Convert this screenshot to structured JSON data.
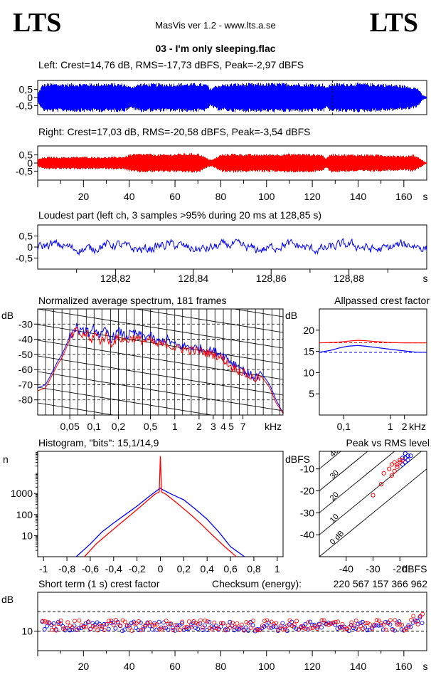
{
  "header": {
    "logo_left": "LTS",
    "logo_right": "LTS",
    "app_title": "MasVis ver 1.2 - www.lts.a.se",
    "file_title": "03 - I'm only sleeping.flac"
  },
  "colors": {
    "left": "#0000ff",
    "right": "#ff0000",
    "grid": "#000000"
  },
  "chart_data": [
    {
      "type": "line",
      "id": "waveform-left",
      "title": "Left: Crest=14,76 dB, RMS=-17,73 dBFS, Peak=-2,97 dBFS",
      "ylim": [
        -1,
        1
      ],
      "yticks": [
        "0,5",
        "0",
        "-0,5"
      ],
      "ytick_values": [
        0.5,
        0,
        -0.5
      ],
      "xlim": [
        0,
        170
      ],
      "marker_time": 128.85,
      "envelope": {
        "t": [
          0,
          2,
          5,
          10,
          20,
          30,
          38,
          40,
          45,
          55,
          62,
          70,
          74,
          75,
          78,
          85,
          95,
          105,
          115,
          125,
          126,
          127,
          130,
          140,
          150,
          158,
          162,
          166,
          168,
          170
        ],
        "amplitude": [
          0.3,
          0.85,
          0.9,
          0.88,
          0.9,
          0.9,
          0.88,
          0.7,
          0.9,
          0.88,
          0.9,
          0.9,
          0.85,
          0.55,
          0.8,
          0.9,
          0.9,
          0.92,
          0.9,
          0.88,
          0.6,
          0.85,
          0.9,
          0.92,
          0.88,
          0.8,
          0.75,
          0.6,
          0.15,
          0.05
        ]
      }
    },
    {
      "type": "line",
      "id": "waveform-right",
      "title": "Right: Crest=17,03 dB, RMS=-20,58 dBFS, Peak=-3,54 dBFS",
      "ylim": [
        -1,
        1
      ],
      "yticks": [
        "0,5",
        "0",
        "-0,5"
      ],
      "ytick_values": [
        0.5,
        0,
        -0.5
      ],
      "xlim": [
        0,
        170
      ],
      "xticks": [
        "20",
        "40",
        "60",
        "80",
        "100",
        "120",
        "140",
        "160"
      ],
      "xtick_values": [
        20,
        40,
        60,
        80,
        100,
        120,
        140,
        160
      ],
      "xunit": "s",
      "envelope": {
        "t": [
          0,
          2,
          5,
          10,
          20,
          30,
          38,
          40,
          45,
          55,
          62,
          70,
          74,
          76,
          80,
          85,
          95,
          105,
          115,
          124,
          126,
          128,
          135,
          145,
          155,
          160,
          164,
          167,
          169,
          170
        ],
        "amplitude": [
          0.25,
          0.35,
          0.4,
          0.38,
          0.4,
          0.38,
          0.42,
          0.55,
          0.6,
          0.55,
          0.6,
          0.62,
          0.3,
          0.2,
          0.55,
          0.6,
          0.55,
          0.58,
          0.6,
          0.55,
          0.3,
          0.6,
          0.55,
          0.55,
          0.5,
          0.45,
          0.55,
          0.3,
          0.08,
          0.03
        ]
      }
    },
    {
      "type": "line",
      "id": "loudest-part",
      "title": "Loudest part (left  ch, 3 samples >95% during 20 ms at 128,85 s)",
      "ylim": [
        -1,
        1
      ],
      "yticks": [
        "0,5",
        "0",
        "-0,5"
      ],
      "ytick_values": [
        0.5,
        0,
        -0.5
      ],
      "xlim": [
        128.8,
        128.9
      ],
      "xticks": [
        "128,82",
        "128,84",
        "128,86",
        "128,88"
      ],
      "xtick_values": [
        128.82,
        128.84,
        128.86,
        128.88
      ],
      "xunit": "s",
      "amplitude_range": [
        -0.35,
        0.45
      ]
    },
    {
      "type": "line",
      "id": "average-spectrum",
      "title": "Normalized average spectrum, 181 frames",
      "ylabel": "dB",
      "ylim": [
        -90,
        -20
      ],
      "yticks": [
        "-30",
        "-40",
        "-50",
        "-60",
        "-70",
        "-80"
      ],
      "ytick_values": [
        -30,
        -40,
        -50,
        -60,
        -70,
        -80
      ],
      "xscale": "log",
      "xlim": [
        0.02,
        22
      ],
      "xticks": [
        "0,05",
        "0,1",
        "0,2",
        "0,5",
        "1",
        "2",
        "3",
        "4",
        "5",
        "7"
      ],
      "xtick_values": [
        0.05,
        0.1,
        0.2,
        0.5,
        1,
        2,
        3,
        4,
        5,
        7
      ],
      "xunit": "kHz",
      "series": [
        {
          "color": "#0000ff",
          "x": [
            0.02,
            0.025,
            0.03,
            0.035,
            0.04,
            0.05,
            0.06,
            0.07,
            0.08,
            0.09,
            0.1,
            0.12,
            0.14,
            0.16,
            0.2,
            0.25,
            0.3,
            0.4,
            0.5,
            0.6,
            0.8,
            1,
            1.5,
            2,
            3,
            4,
            5,
            6,
            7,
            8,
            10,
            12,
            15,
            18,
            22
          ],
          "y": [
            -72,
            -70,
            -62,
            -55,
            -50,
            -38,
            -32,
            -36,
            -33,
            -38,
            -32,
            -38,
            -34,
            -40,
            -35,
            -38,
            -36,
            -38,
            -38,
            -42,
            -40,
            -44,
            -45,
            -46,
            -48,
            -50,
            -55,
            -57,
            -60,
            -63,
            -65,
            -63,
            -70,
            -80,
            -89
          ]
        },
        {
          "color": "#ff0000",
          "x": [
            0.02,
            0.025,
            0.03,
            0.035,
            0.04,
            0.05,
            0.06,
            0.07,
            0.08,
            0.09,
            0.1,
            0.12,
            0.14,
            0.16,
            0.2,
            0.25,
            0.3,
            0.4,
            0.5,
            0.6,
            0.8,
            1,
            1.5,
            2,
            3,
            4,
            5,
            6,
            7,
            8,
            10,
            12,
            15,
            18,
            22
          ],
          "y": [
            -74,
            -72,
            -64,
            -57,
            -52,
            -40,
            -34,
            -38,
            -36,
            -42,
            -36,
            -41,
            -38,
            -43,
            -39,
            -41,
            -39,
            -41,
            -41,
            -44,
            -43,
            -46,
            -47,
            -48,
            -50,
            -53,
            -58,
            -60,
            -62,
            -64,
            -66,
            -65,
            -72,
            -82,
            -89
          ]
        }
      ]
    },
    {
      "type": "line",
      "id": "allpassed-crest",
      "title": "Allpassed crest factor",
      "ylabel": "dB",
      "ylim": [
        0,
        25
      ],
      "yticks": [
        "20",
        "15",
        "10",
        "5"
      ],
      "ytick_values": [
        20,
        15,
        10,
        5
      ],
      "xscale": "log",
      "xlim": [
        0.03,
        6
      ],
      "xticks": [
        "0,1",
        "1",
        "2"
      ],
      "xtick_values": [
        0.1,
        1,
        2
      ],
      "xunit": "kHz",
      "reference_lines": [
        {
          "color": "#ff0000",
          "y": 17.03
        },
        {
          "color": "#0000ff",
          "y": 14.76
        }
      ],
      "series": [
        {
          "color": "#ff0000",
          "x": [
            0.03,
            0.05,
            0.08,
            0.12,
            0.2,
            0.3,
            0.5,
            1,
            2,
            4,
            6
          ],
          "y": [
            17.0,
            17.1,
            17.2,
            17.4,
            17.6,
            17.5,
            17.3,
            17.1,
            17.0,
            17.0,
            17.0
          ]
        },
        {
          "color": "#0000ff",
          "x": [
            0.03,
            0.05,
            0.08,
            0.12,
            0.2,
            0.3,
            0.5,
            1,
            2,
            3,
            4,
            6
          ],
          "y": [
            14.8,
            15.2,
            15.8,
            16.2,
            16.4,
            16.2,
            15.9,
            15.5,
            15.1,
            14.9,
            14.8,
            14.8
          ]
        }
      ]
    },
    {
      "type": "line",
      "id": "histogram",
      "title": "Histogram, \"bits\": 15,1/14,9",
      "ylabel": "n",
      "yscale": "log",
      "ylim": [
        1,
        100000
      ],
      "yticks": [
        "1000",
        "100",
        "10"
      ],
      "ytick_values": [
        1000,
        100,
        10
      ],
      "xlim": [
        -1.05,
        1.05
      ],
      "xticks": [
        "-1",
        "-0,8",
        "-0,6",
        "-0,4",
        "-0,2",
        "0",
        "0,2",
        "0,4",
        "0,6",
        "0,8",
        "1"
      ],
      "xtick_values": [
        -1,
        -0.8,
        -0.6,
        -0.4,
        -0.2,
        0,
        0.2,
        0.4,
        0.6,
        0.8,
        1
      ],
      "series": [
        {
          "color": "#0000ff",
          "x": [
            -0.72,
            -0.6,
            -0.5,
            -0.4,
            -0.3,
            -0.2,
            -0.1,
            -0.02,
            0,
            0.02,
            0.1,
            0.2,
            0.3,
            0.4,
            0.5,
            0.6,
            0.72
          ],
          "y": [
            1,
            4,
            15,
            40,
            100,
            250,
            700,
            1500,
            1800,
            1500,
            900,
            500,
            180,
            60,
            15,
            3,
            1
          ]
        },
        {
          "color": "#ff0000",
          "x": [
            -0.65,
            -0.55,
            -0.45,
            -0.35,
            -0.25,
            -0.15,
            -0.05,
            -0.01,
            0,
            0.01,
            0.05,
            0.15,
            0.25,
            0.35,
            0.45,
            0.55,
            0.65
          ],
          "y": [
            1,
            4,
            12,
            35,
            100,
            300,
            900,
            1200,
            60000,
            1200,
            900,
            320,
            110,
            35,
            10,
            3,
            1
          ]
        }
      ]
    },
    {
      "type": "scatter",
      "id": "peak-vs-rms",
      "title": "Peak vs RMS level",
      "ylabel": "dBFS",
      "xunit": "dBFS",
      "xlim": [
        -50,
        -10
      ],
      "ylim": [
        -50,
        -2
      ],
      "xticks": [
        "-40",
        "-30",
        "-20"
      ],
      "xtick_values": [
        -40,
        -30,
        -20
      ],
      "yticks": [
        "-10",
        "-20",
        "-30",
        "-40"
      ],
      "ytick_values": [
        -10,
        -20,
        -30,
        -40
      ],
      "crest_lines": [
        "0 dB",
        "10",
        "20",
        "30",
        "40"
      ],
      "crest_values": [
        0,
        10,
        20,
        30,
        40
      ],
      "series": [
        {
          "color": "#0000ff",
          "rms": [
            -20,
            -19,
            -18,
            -17,
            -18,
            -19,
            -21,
            -17,
            -16,
            -18
          ],
          "peak": [
            -6,
            -5,
            -7,
            -4,
            -5,
            -8,
            -9,
            -6,
            -4,
            -3
          ]
        },
        {
          "color": "#ff0000",
          "rms": [
            -23,
            -22,
            -21,
            -20,
            -24,
            -26,
            -22,
            -21,
            -20,
            -19,
            -23,
            -27,
            -30
          ],
          "peak": [
            -8,
            -7,
            -9,
            -6,
            -10,
            -12,
            -11,
            -8,
            -7,
            -6,
            -13,
            -17,
            -22
          ]
        }
      ]
    },
    {
      "type": "scatter",
      "id": "short-term-crest",
      "title": "Short term (1 s) crest factor",
      "ylabel": "dB",
      "checksum_label": "Checksum (energy):",
      "checksum_value": "220 567 157 366 962",
      "ylim": [
        0,
        30
      ],
      "yticks": [
        "10"
      ],
      "ytick_values": [
        10
      ],
      "reference_lines": [
        20,
        10
      ],
      "xlim": [
        0,
        170
      ],
      "xticks": [
        "20",
        "40",
        "60",
        "80",
        "100",
        "120",
        "140",
        "160"
      ],
      "xtick_values": [
        20,
        40,
        60,
        80,
        100,
        120,
        140,
        160
      ],
      "xunit": "s",
      "series": [
        {
          "color": "#0000ff",
          "center": 12.5,
          "spread": 2.5
        },
        {
          "color": "#ff0000",
          "center": 13.0,
          "spread": 2.8
        }
      ]
    }
  ]
}
